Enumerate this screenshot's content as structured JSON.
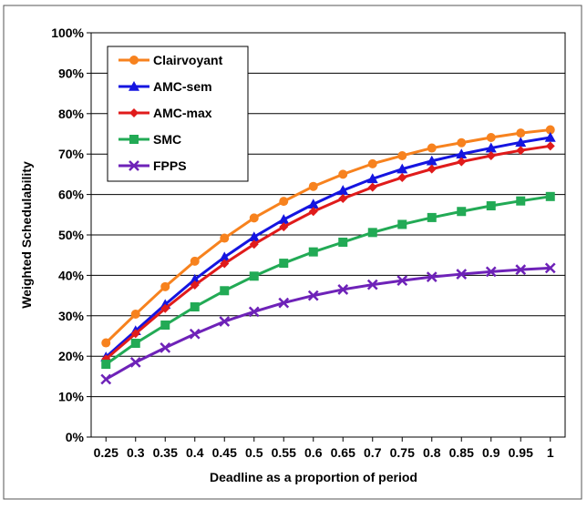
{
  "chart_data": {
    "type": "line",
    "title": "",
    "xlabel": "Deadline as a proportion of period",
    "ylabel": "Weighted Schedulability",
    "x": [
      0.25,
      0.3,
      0.35,
      0.4,
      0.45,
      0.5,
      0.55,
      0.6,
      0.65,
      0.7,
      0.75,
      0.8,
      0.85,
      0.9,
      0.95,
      1
    ],
    "x_tick_labels": [
      "0.25",
      "0.3",
      "0.35",
      "0.4",
      "0.45",
      "0.5",
      "0.55",
      "0.6",
      "0.65",
      "0.7",
      "0.75",
      "0.8",
      "0.85",
      "0.9",
      "0.95",
      "1"
    ],
    "ylim": [
      0,
      100
    ],
    "y_ticks": [
      0,
      10,
      20,
      30,
      40,
      50,
      60,
      70,
      80,
      90,
      100
    ],
    "y_tick_labels": [
      "0%",
      "10%",
      "20%",
      "30%",
      "40%",
      "50%",
      "60%",
      "70%",
      "80%",
      "90%",
      "100%"
    ],
    "grid": "horizontal",
    "legend_position": "top-left",
    "series": [
      {
        "name": "Clairvoyant",
        "color": "#F7821E",
        "marker": "circle",
        "values": [
          23.3,
          30.4,
          37.2,
          43.5,
          49.2,
          54.2,
          58.3,
          62.0,
          65.0,
          67.6,
          69.6,
          71.5,
          72.8,
          74.1,
          75.2,
          76.0
        ]
      },
      {
        "name": "AMC-sem",
        "color": "#1515E0",
        "marker": "triangle",
        "values": [
          19.8,
          26.3,
          32.8,
          39.0,
          44.5,
          49.5,
          53.8,
          57.6,
          61.0,
          63.9,
          66.3,
          68.3,
          70.0,
          71.5,
          72.9,
          74.1
        ]
      },
      {
        "name": "AMC-max",
        "color": "#E01B1B",
        "marker": "diamond",
        "values": [
          19.3,
          25.6,
          31.8,
          37.6,
          42.9,
          47.7,
          52.0,
          55.8,
          59.0,
          61.8,
          64.2,
          66.3,
          68.1,
          69.6,
          70.9,
          72.0
        ]
      },
      {
        "name": "SMC",
        "color": "#22AA55",
        "marker": "square",
        "values": [
          18.0,
          23.2,
          27.7,
          32.2,
          36.2,
          39.8,
          43.0,
          45.8,
          48.2,
          50.6,
          52.6,
          54.3,
          55.8,
          57.2,
          58.4,
          59.5
        ]
      },
      {
        "name": "FPPS",
        "color": "#6E22B8",
        "marker": "x",
        "values": [
          14.3,
          18.5,
          22.1,
          25.5,
          28.6,
          31.0,
          33.2,
          35.0,
          36.5,
          37.7,
          38.7,
          39.6,
          40.3,
          40.9,
          41.4,
          41.8
        ]
      }
    ]
  }
}
